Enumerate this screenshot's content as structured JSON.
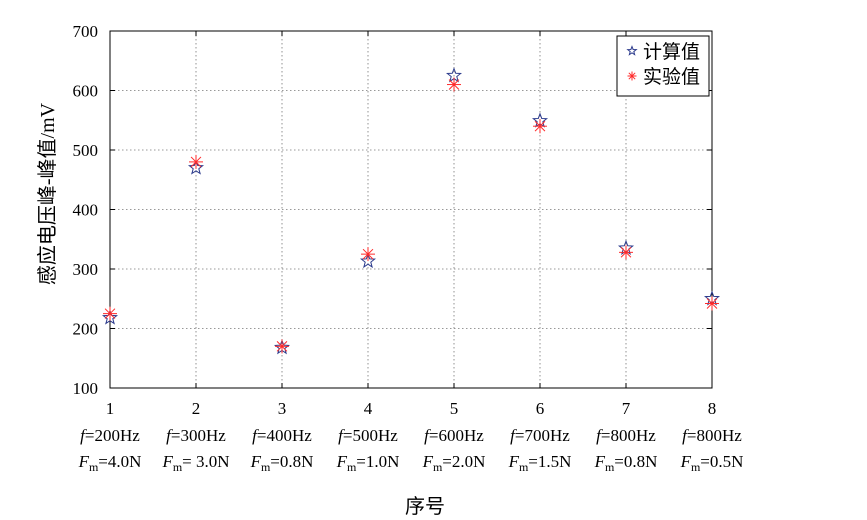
{
  "chart_data": {
    "type": "scatter",
    "title": "",
    "xlabel": "序号",
    "ylabel": "感应电压峰-峰值/mV",
    "xlim": [
      1,
      8
    ],
    "ylim": [
      100,
      700
    ],
    "grid": true,
    "legend_position": "top-right",
    "x": [
      1,
      2,
      3,
      4,
      5,
      6,
      7,
      8
    ],
    "yticks": [
      100,
      200,
      300,
      400,
      500,
      600,
      700
    ],
    "x_tick_labels": [
      {
        "n": "1",
        "f": "200Hz",
        "fm": "4.0N"
      },
      {
        "n": "2",
        "f": "300Hz",
        "fm": " 3.0N"
      },
      {
        "n": "3",
        "f": "400Hz",
        "fm": "0.8N"
      },
      {
        "n": "4",
        "f": "500Hz",
        "fm": "1.0N"
      },
      {
        "n": "5",
        "f": "600Hz",
        "fm": "2.0N"
      },
      {
        "n": "6",
        "f": "700Hz",
        "fm": "1.5N"
      },
      {
        "n": "7",
        "f": "800Hz",
        "fm": "0.8N"
      },
      {
        "n": "8",
        "f": "800Hz",
        "fm": "0.5N"
      }
    ],
    "series": [
      {
        "name": "计算值",
        "marker": "star",
        "color": "#2b3a8c",
        "values": [
          218,
          470,
          168,
          313,
          625,
          549,
          335,
          250
        ]
      },
      {
        "name": "实验值",
        "marker": "asterisk",
        "color": "#ff2a2a",
        "values": [
          225,
          480,
          170,
          325,
          610,
          540,
          328,
          242
        ]
      }
    ]
  }
}
